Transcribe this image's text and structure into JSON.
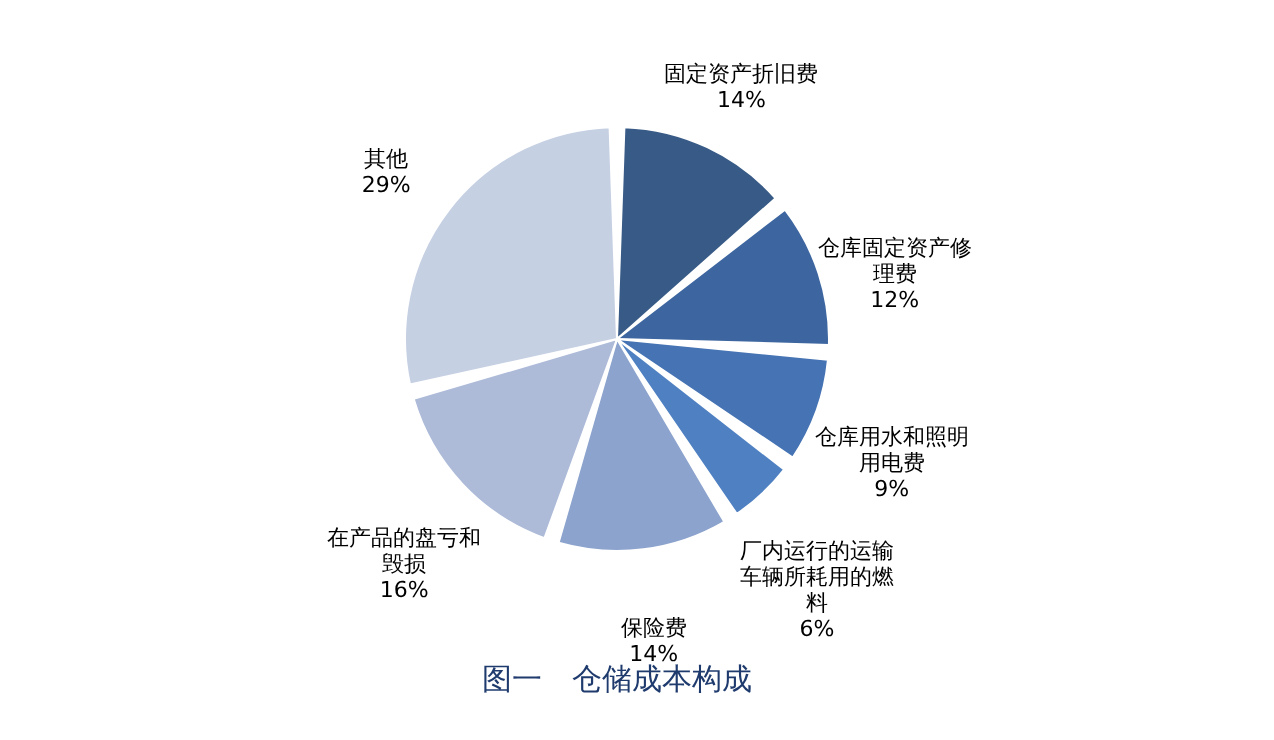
{
  "chart_data": {
    "type": "pie",
    "title": "图一　仓储成本构成",
    "categories": [
      "固定资产折旧费",
      "仓库固定资产修理费",
      "仓库用水和照明用电费",
      "厂内运行的运输车辆所耗用的燃料",
      "保险费",
      "在产品的盘亏和毁损",
      "其他"
    ],
    "values": [
      14,
      12,
      9,
      6,
      14,
      16,
      29
    ],
    "value_labels": [
      "14%",
      "12%",
      "9%",
      "6%",
      "14%",
      "16%",
      "29%"
    ],
    "colors": [
      "#375a86",
      "#3d66a0",
      "#4573b3",
      "#4f81c2",
      "#8ba3cd",
      "#adbbd9",
      "#c6d0e3"
    ],
    "legend": false
  }
}
